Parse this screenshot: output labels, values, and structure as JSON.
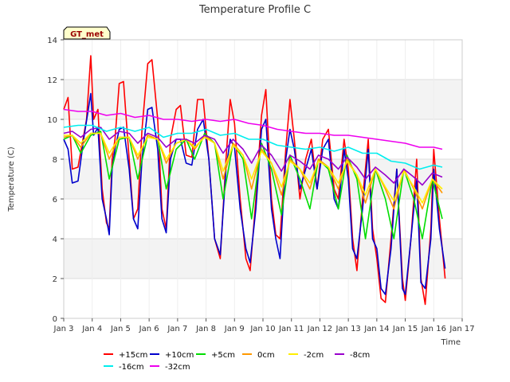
{
  "chart_data": {
    "type": "line",
    "title": "Temperature Profile C",
    "xlabel": "Time",
    "ylabel": "Temperature (C)",
    "badge": "GT_met",
    "xlim": [
      3,
      17
    ],
    "ylim": [
      0,
      14
    ],
    "x_ticks": [
      {
        "v": 3,
        "label": "Jan 3"
      },
      {
        "v": 4,
        "label": "Jan 4"
      },
      {
        "v": 5,
        "label": "Jan 5"
      },
      {
        "v": 6,
        "label": "Jan 6"
      },
      {
        "v": 7,
        "label": "Jan 7"
      },
      {
        "v": 8,
        "label": "Jan 8"
      },
      {
        "v": 9,
        "label": "Jan 9"
      },
      {
        "v": 10,
        "label": "Jan 10"
      },
      {
        "v": 11,
        "label": "Jan 11"
      },
      {
        "v": 12,
        "label": "Jan 12"
      },
      {
        "v": 13,
        "label": "Jan 13"
      },
      {
        "v": 14,
        "label": "Jan 14"
      },
      {
        "v": 15,
        "label": "Jan 15"
      },
      {
        "v": 16,
        "label": "Jan 16"
      },
      {
        "v": 17,
        "label": "Jan 17"
      }
    ],
    "y_ticks": [
      {
        "v": 0,
        "label": "0"
      },
      {
        "v": 2,
        "label": "2"
      },
      {
        "v": 4,
        "label": "4"
      },
      {
        "v": 6,
        "label": "6"
      },
      {
        "v": 8,
        "label": "8"
      },
      {
        "v": 10,
        "label": "10"
      },
      {
        "v": 12,
        "label": "12"
      },
      {
        "v": 14,
        "label": "14"
      }
    ],
    "grid": true,
    "legend_position": "bottom",
    "series": [
      {
        "name": "+15cm",
        "color": "#ff0000",
        "x": [
          3.0,
          3.15,
          3.3,
          3.5,
          3.8,
          3.95,
          4.05,
          4.2,
          4.35,
          4.5,
          4.6,
          4.7,
          4.8,
          4.95,
          5.1,
          5.3,
          5.45,
          5.6,
          5.75,
          5.95,
          6.1,
          6.3,
          6.45,
          6.6,
          6.75,
          6.95,
          7.1,
          7.3,
          7.5,
          7.7,
          7.9,
          8.1,
          8.3,
          8.5,
          8.7,
          8.85,
          9.0,
          9.2,
          9.4,
          9.55,
          9.75,
          9.95,
          10.1,
          10.3,
          10.45,
          10.6,
          10.8,
          10.95,
          11.1,
          11.3,
          11.5,
          11.7,
          11.9,
          12.1,
          12.3,
          12.5,
          12.65,
          12.85,
          13.0,
          13.15,
          13.3,
          13.5,
          13.7,
          13.85,
          14.0,
          14.15,
          14.3,
          14.5,
          14.7,
          14.9,
          15.0,
          15.2,
          15.4,
          15.55,
          15.7,
          15.9,
          16.0,
          16.2,
          16.4
        ],
        "y": [
          10.5,
          11.1,
          7.5,
          7.6,
          10.0,
          13.2,
          10.0,
          10.5,
          6.5,
          4.8,
          4.5,
          8.0,
          9.0,
          11.8,
          11.9,
          8.0,
          5.0,
          5.5,
          9.5,
          12.8,
          13.0,
          10.0,
          5.5,
          4.5,
          9.0,
          10.5,
          10.7,
          8.2,
          8.1,
          11.0,
          11.0,
          8.0,
          4.0,
          3.0,
          8.0,
          11.0,
          9.8,
          6.0,
          3.0,
          2.4,
          6.0,
          10.2,
          11.5,
          6.0,
          4.2,
          4.0,
          8.5,
          11.0,
          9.0,
          6.0,
          8.0,
          9.0,
          6.5,
          9.0,
          9.5,
          6.5,
          6.0,
          9.0,
          7.5,
          4.0,
          2.4,
          6.0,
          9.0,
          4.5,
          3.0,
          1.0,
          0.8,
          4.0,
          7.5,
          2.0,
          0.9,
          4.0,
          8.0,
          2.0,
          0.7,
          4.5,
          8.5,
          5.0,
          2.0
        ]
      },
      {
        "name": "+10cm",
        "color": "#0000cc",
        "x": [
          3.0,
          3.15,
          3.3,
          3.5,
          3.7,
          3.95,
          4.05,
          4.2,
          4.35,
          4.5,
          4.6,
          4.7,
          4.8,
          4.95,
          5.1,
          5.3,
          5.45,
          5.6,
          5.75,
          5.95,
          6.1,
          6.3,
          6.45,
          6.6,
          6.75,
          6.95,
          7.1,
          7.3,
          7.5,
          7.7,
          7.9,
          8.1,
          8.3,
          8.5,
          8.7,
          8.85,
          9.0,
          9.2,
          9.4,
          9.55,
          9.75,
          9.95,
          10.1,
          10.3,
          10.45,
          10.6,
          10.8,
          10.95,
          11.1,
          11.3,
          11.5,
          11.7,
          11.9,
          12.1,
          12.3,
          12.5,
          12.65,
          12.85,
          13.0,
          13.15,
          13.3,
          13.5,
          13.7,
          13.85,
          14.0,
          14.15,
          14.3,
          14.5,
          14.7,
          14.9,
          15.0,
          15.2,
          15.4,
          15.55,
          15.7,
          15.9,
          16.0,
          16.2,
          16.4
        ],
        "y": [
          9.0,
          8.5,
          6.8,
          6.9,
          9.0,
          11.3,
          9.2,
          9.6,
          6.0,
          5.0,
          4.2,
          7.5,
          8.5,
          9.5,
          9.6,
          7.5,
          5.0,
          4.5,
          8.0,
          10.5,
          10.6,
          8.5,
          5.0,
          4.3,
          8.0,
          9.0,
          9.0,
          7.8,
          7.7,
          9.5,
          10.0,
          8.0,
          4.0,
          3.2,
          7.5,
          9.0,
          8.6,
          5.5,
          3.5,
          2.8,
          5.5,
          9.5,
          10.0,
          5.5,
          4.0,
          3.0,
          8.0,
          9.5,
          8.5,
          6.5,
          7.5,
          8.5,
          6.5,
          8.5,
          9.0,
          6.0,
          5.5,
          8.5,
          7.0,
          3.5,
          3.0,
          5.5,
          8.5,
          4.0,
          3.5,
          1.5,
          1.2,
          3.5,
          7.5,
          1.5,
          1.2,
          4.0,
          7.0,
          1.8,
          1.5,
          4.0,
          7.5,
          4.5,
          2.5
        ]
      },
      {
        "name": "+5cm",
        "color": "#00dd00",
        "x": [
          3.0,
          3.3,
          3.6,
          3.95,
          4.3,
          4.6,
          4.95,
          5.3,
          5.6,
          5.95,
          6.3,
          6.6,
          6.95,
          7.3,
          7.6,
          7.95,
          8.3,
          8.6,
          8.95,
          9.3,
          9.6,
          9.95,
          10.3,
          10.65,
          10.95,
          11.3,
          11.65,
          11.95,
          12.3,
          12.65,
          12.95,
          13.3,
          13.6,
          13.95,
          14.3,
          14.6,
          14.95,
          15.3,
          15.6,
          15.95,
          16.3
        ],
        "y": [
          9.0,
          9.2,
          8.3,
          9.2,
          9.4,
          7.0,
          9.0,
          9.1,
          7.0,
          9.2,
          9.0,
          6.5,
          8.5,
          9.0,
          8.0,
          9.3,
          8.8,
          6.0,
          8.8,
          8.0,
          5.0,
          8.8,
          7.5,
          5.2,
          8.2,
          7.0,
          5.5,
          8.0,
          7.5,
          5.5,
          8.2,
          7.0,
          4.0,
          7.5,
          6.0,
          4.0,
          7.5,
          6.0,
          4.0,
          7.0,
          5.0
        ]
      },
      {
        "name": "0cm",
        "color": "#ff9900",
        "x": [
          3.0,
          3.3,
          3.6,
          3.95,
          4.3,
          4.6,
          4.95,
          5.3,
          5.6,
          5.95,
          6.3,
          6.6,
          6.95,
          7.3,
          7.6,
          7.95,
          8.3,
          8.6,
          8.95,
          9.3,
          9.6,
          9.95,
          10.3,
          10.65,
          10.95,
          11.3,
          11.65,
          11.95,
          12.3,
          12.65,
          12.95,
          13.3,
          13.6,
          13.95,
          14.3,
          14.6,
          14.95,
          15.3,
          15.6,
          15.95,
          16.3
        ],
        "y": [
          9.1,
          9.2,
          8.6,
          9.3,
          9.3,
          8.0,
          9.1,
          9.1,
          8.0,
          9.2,
          9.0,
          7.8,
          8.8,
          9.0,
          8.5,
          9.2,
          8.8,
          7.0,
          8.8,
          8.2,
          6.5,
          8.5,
          7.8,
          6.2,
          8.0,
          7.5,
          6.5,
          8.0,
          7.6,
          6.5,
          8.0,
          7.2,
          5.8,
          7.5,
          6.5,
          5.5,
          7.5,
          6.5,
          5.5,
          7.0,
          6.3
        ]
      },
      {
        "name": "-2cm",
        "color": "#ffee00",
        "x": [
          3.0,
          3.3,
          3.6,
          3.95,
          4.3,
          4.6,
          4.95,
          5.3,
          5.6,
          5.95,
          6.3,
          6.6,
          6.95,
          7.3,
          7.6,
          7.95,
          8.3,
          8.6,
          8.95,
          9.3,
          9.6,
          9.95,
          10.3,
          10.65,
          10.95,
          11.3,
          11.65,
          11.95,
          12.3,
          12.65,
          12.95,
          13.3,
          13.6,
          13.95,
          14.3,
          14.6,
          14.95,
          15.3,
          15.6,
          15.95,
          16.3
        ],
        "y": [
          9.2,
          9.2,
          8.8,
          9.3,
          9.3,
          8.3,
          9.1,
          9.1,
          8.2,
          9.1,
          9.0,
          8.0,
          8.8,
          9.0,
          8.6,
          9.1,
          8.8,
          7.4,
          8.7,
          8.2,
          7.0,
          8.4,
          7.8,
          6.6,
          7.9,
          7.5,
          6.8,
          7.9,
          7.6,
          6.8,
          7.9,
          7.2,
          6.2,
          7.5,
          6.6,
          5.9,
          7.4,
          6.6,
          5.8,
          7.0,
          6.5
        ]
      },
      {
        "name": "-8cm",
        "color": "#9900cc",
        "x": [
          3.0,
          3.3,
          3.6,
          3.95,
          4.3,
          4.6,
          4.95,
          5.3,
          5.6,
          5.95,
          6.3,
          6.6,
          6.95,
          7.3,
          7.6,
          7.95,
          8.3,
          8.6,
          8.95,
          9.3,
          9.6,
          9.95,
          10.3,
          10.65,
          10.95,
          11.3,
          11.65,
          11.95,
          12.3,
          12.65,
          12.95,
          13.3,
          13.6,
          13.95,
          14.3,
          14.6,
          14.95,
          15.3,
          15.6,
          15.95,
          16.3
        ],
        "y": [
          9.3,
          9.4,
          9.1,
          9.5,
          9.6,
          9.0,
          9.4,
          9.3,
          8.8,
          9.3,
          9.1,
          8.6,
          9.0,
          9.0,
          8.8,
          9.2,
          9.0,
          8.3,
          9.0,
          8.5,
          7.8,
          8.7,
          8.2,
          7.4,
          8.2,
          7.9,
          7.5,
          8.2,
          8.0,
          7.5,
          8.1,
          7.6,
          7.0,
          7.6,
          7.2,
          6.8,
          7.5,
          7.1,
          6.7,
          7.3,
          7.1
        ]
      },
      {
        "name": "-16cm",
        "color": "#00eeee",
        "x": [
          3.0,
          3.5,
          4.0,
          4.5,
          5.0,
          5.5,
          6.0,
          6.5,
          7.0,
          7.5,
          8.0,
          8.5,
          9.0,
          9.5,
          10.0,
          10.5,
          11.0,
          11.5,
          12.0,
          12.5,
          13.0,
          13.5,
          14.0,
          14.5,
          15.0,
          15.5,
          16.0,
          16.3
        ],
        "y": [
          9.6,
          9.7,
          9.7,
          9.4,
          9.6,
          9.4,
          9.6,
          9.1,
          9.3,
          9.3,
          9.5,
          9.2,
          9.3,
          9.0,
          9.0,
          8.7,
          8.6,
          8.5,
          8.6,
          8.4,
          8.6,
          8.3,
          8.3,
          7.9,
          7.8,
          7.5,
          7.7,
          7.6
        ]
      },
      {
        "name": "-32cm",
        "color": "#ee00ee",
        "x": [
          3.0,
          3.5,
          4.0,
          4.5,
          5.0,
          5.5,
          6.0,
          6.5,
          7.0,
          7.5,
          8.0,
          8.5,
          9.0,
          9.5,
          10.0,
          10.5,
          11.0,
          11.5,
          12.0,
          12.5,
          13.0,
          13.5,
          14.0,
          14.5,
          15.0,
          15.5,
          16.0,
          16.3
        ],
        "y": [
          10.5,
          10.4,
          10.4,
          10.2,
          10.3,
          10.1,
          10.2,
          10.0,
          10.0,
          9.9,
          10.0,
          9.9,
          10.0,
          9.8,
          9.7,
          9.5,
          9.4,
          9.3,
          9.3,
          9.2,
          9.2,
          9.1,
          9.0,
          8.9,
          8.8,
          8.6,
          8.6,
          8.5
        ]
      }
    ]
  }
}
